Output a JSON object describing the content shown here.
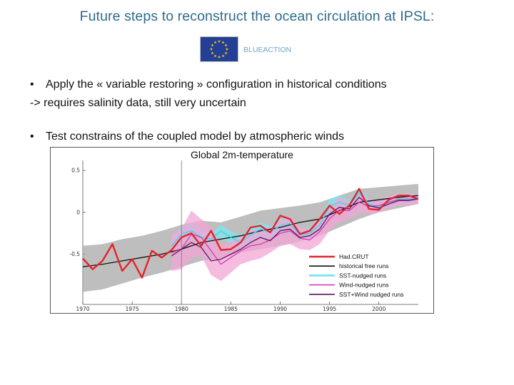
{
  "title": "Future steps to reconstruct the ocean circulation at IPSL:",
  "logo": {
    "text": "BLUEACTION",
    "flag_icon": "eu-flag-icon",
    "flag_color": "#233f96",
    "star_color": "#ffcc00"
  },
  "bullets": [
    {
      "text": "Apply the « variable restoring » configuration in historical conditions",
      "continuation": "-> requires salinity data, still very uncertain"
    },
    {
      "text": "Test constrains of the coupled model by atmospheric winds"
    }
  ],
  "chart_data": {
    "type": "line",
    "title": "Global 2m-temperature",
    "x_ticks": [
      "1970",
      "1975",
      "1980",
      "1985",
      "1990",
      "1995",
      "2000"
    ],
    "y_ticks": [
      "0.5",
      "0",
      "-0.5"
    ],
    "xlim": [
      1970,
      2004
    ],
    "ylim": [
      -1.1,
      0.62
    ],
    "vline_x": 1980,
    "grid": false,
    "legend_position": "bottom-right",
    "bands": [
      {
        "name": "historical free runs",
        "color": "#a8a8a8",
        "x": [
          1970,
          1972,
          1974,
          1976,
          1978,
          1980,
          1982,
          1984,
          1986,
          1988,
          1990,
          1992,
          1994,
          1996,
          1998,
          2000,
          2002,
          2004
        ],
        "lower": [
          -0.95,
          -0.92,
          -0.85,
          -0.78,
          -0.72,
          -0.65,
          -0.58,
          -0.55,
          -0.48,
          -0.44,
          -0.4,
          -0.35,
          -0.28,
          -0.18,
          -0.08,
          0.0,
          0.05,
          0.1
        ],
        "upper": [
          -0.4,
          -0.38,
          -0.32,
          -0.28,
          -0.22,
          -0.15,
          -0.1,
          -0.12,
          -0.05,
          0.02,
          0.05,
          0.08,
          0.12,
          0.2,
          0.28,
          0.3,
          0.32,
          0.34
        ]
      },
      {
        "name": "SST-nudged runs",
        "color": "#7fe6ee",
        "x": [
          1979,
          1980,
          1981,
          1982,
          1983,
          1984,
          1985,
          1986,
          1987,
          1988,
          1989,
          1990,
          1991,
          1992,
          1993,
          1994,
          1995,
          1996,
          1997,
          1998,
          1999,
          2000,
          2001,
          2002,
          2003,
          2004
        ],
        "lower": [
          -0.48,
          -0.35,
          -0.32,
          -0.38,
          -0.4,
          -0.3,
          -0.38,
          -0.45,
          -0.36,
          -0.28,
          -0.32,
          -0.24,
          -0.22,
          -0.34,
          -0.32,
          -0.22,
          -0.02,
          0.04,
          0.02,
          0.16,
          0.05,
          0.0,
          0.06,
          0.1,
          0.1,
          0.12
        ],
        "upper": [
          -0.3,
          -0.18,
          -0.12,
          -0.22,
          -0.25,
          -0.15,
          -0.22,
          -0.28,
          -0.18,
          -0.12,
          -0.16,
          -0.08,
          -0.05,
          -0.2,
          -0.18,
          -0.08,
          0.16,
          0.2,
          0.14,
          0.3,
          0.16,
          0.12,
          0.18,
          0.22,
          0.22,
          0.22
        ]
      },
      {
        "name": "Wind-nudged runs",
        "color": "#f2a6d6",
        "x": [
          1979,
          1980,
          1981,
          1982,
          1983,
          1984,
          1985,
          1986,
          1987,
          1988,
          1989,
          1990,
          1991,
          1992,
          1993,
          1994,
          1995,
          1996,
          1997,
          1998,
          1999,
          2000,
          2001,
          2002,
          2003,
          2004
        ],
        "lower": [
          -0.7,
          -0.68,
          -0.55,
          -0.52,
          -0.75,
          -0.82,
          -0.72,
          -0.62,
          -0.58,
          -0.55,
          -0.48,
          -0.4,
          -0.38,
          -0.44,
          -0.45,
          -0.38,
          -0.22,
          -0.12,
          -0.08,
          0.0,
          -0.02,
          0.0,
          0.05,
          0.08,
          0.08,
          0.1
        ],
        "upper": [
          -0.25,
          -0.2,
          0.02,
          -0.08,
          -0.18,
          -0.4,
          -0.35,
          -0.3,
          -0.22,
          -0.2,
          -0.18,
          -0.1,
          -0.05,
          -0.18,
          -0.2,
          -0.08,
          0.05,
          0.18,
          0.12,
          0.24,
          0.16,
          0.15,
          0.2,
          0.22,
          0.22,
          0.22
        ]
      }
    ],
    "series": [
      {
        "name": "Had.CRUT",
        "color": "#e4242a",
        "x": [
          1970,
          1971,
          1972,
          1973,
          1974,
          1975,
          1976,
          1977,
          1978,
          1979,
          1980,
          1981,
          1982,
          1983,
          1984,
          1985,
          1986,
          1987,
          1988,
          1989,
          1990,
          1991,
          1992,
          1993,
          1994,
          1995,
          1996,
          1997,
          1998,
          1999,
          2000,
          2001,
          2002,
          2003,
          2004
        ],
        "y": [
          -0.55,
          -0.68,
          -0.58,
          -0.38,
          -0.7,
          -0.56,
          -0.78,
          -0.46,
          -0.54,
          -0.45,
          -0.3,
          -0.25,
          -0.4,
          -0.22,
          -0.45,
          -0.44,
          -0.36,
          -0.18,
          -0.16,
          -0.24,
          -0.04,
          -0.08,
          -0.26,
          -0.22,
          -0.08,
          0.08,
          -0.02,
          0.08,
          0.28,
          0.04,
          0.03,
          0.15,
          0.2,
          0.2,
          0.16
        ]
      },
      {
        "name": "historical free runs",
        "color": "#111111",
        "x": [
          1970,
          1972,
          1974,
          1976,
          1978,
          1980,
          1982,
          1984,
          1986,
          1988,
          1990,
          1992,
          1994,
          1996,
          1998,
          2000,
          2002,
          2004
        ],
        "y": [
          -0.65,
          -0.62,
          -0.58,
          -0.54,
          -0.5,
          -0.44,
          -0.36,
          -0.32,
          -0.28,
          -0.22,
          -0.18,
          -0.12,
          -0.08,
          0.02,
          0.12,
          0.15,
          0.18,
          0.2
        ]
      },
      {
        "name": "SST-nudged runs",
        "color": "#3fd4e8",
        "x": [
          1979,
          1980,
          1981,
          1982,
          1983,
          1984,
          1985,
          1986,
          1987,
          1988,
          1989,
          1990,
          1991,
          1992,
          1993,
          1994,
          1995,
          1996,
          1997,
          1998,
          1999,
          2000,
          2001,
          2002,
          2003,
          2004
        ],
        "y": [
          -0.4,
          -0.26,
          -0.22,
          -0.3,
          -0.32,
          -0.22,
          -0.3,
          -0.36,
          -0.27,
          -0.2,
          -0.24,
          -0.16,
          -0.13,
          -0.27,
          -0.25,
          -0.15,
          0.07,
          0.12,
          0.08,
          0.23,
          0.1,
          0.06,
          0.12,
          0.16,
          0.16,
          0.17
        ]
      },
      {
        "name": "Wind-nudged runs",
        "color": "#d63cb4",
        "x": [
          1979,
          1980,
          1981,
          1982,
          1983,
          1984,
          1985,
          1986,
          1987,
          1988,
          1989,
          1990,
          1991,
          1992,
          1993,
          1994,
          1995,
          1996,
          1997,
          1998,
          1999,
          2000,
          2001,
          2002,
          2003,
          2004
        ],
        "y": [
          -0.48,
          -0.44,
          -0.26,
          -0.3,
          -0.46,
          -0.62,
          -0.54,
          -0.46,
          -0.4,
          -0.38,
          -0.33,
          -0.25,
          -0.22,
          -0.31,
          -0.33,
          -0.23,
          -0.08,
          0.03,
          0.02,
          0.12,
          0.07,
          0.08,
          0.12,
          0.15,
          0.15,
          0.16
        ]
      },
      {
        "name": "SST+Wind nudged runs",
        "color": "#5a1a5e",
        "x": [
          1979,
          1980,
          1981,
          1982,
          1983,
          1984,
          1985,
          1986,
          1987,
          1988,
          1989,
          1990,
          1991,
          1992,
          1993,
          1994,
          1995,
          1996,
          1997,
          1998,
          1999,
          2000,
          2001,
          2002,
          2003,
          2004
        ],
        "y": [
          -0.52,
          -0.44,
          -0.36,
          -0.42,
          -0.58,
          -0.56,
          -0.5,
          -0.44,
          -0.36,
          -0.3,
          -0.34,
          -0.22,
          -0.2,
          -0.3,
          -0.28,
          -0.2,
          -0.02,
          0.06,
          0.04,
          0.18,
          0.08,
          0.05,
          0.1,
          0.14,
          0.14,
          0.16
        ]
      }
    ],
    "legend": [
      {
        "label": "Had.CRUT",
        "color": "#e4242a"
      },
      {
        "label": "historical free runs",
        "color": "#111111"
      },
      {
        "label": "SST-nudged runs",
        "color": "#7fe6ee"
      },
      {
        "label": "Wind-nudged runs",
        "color": "#d63cb4"
      },
      {
        "label": "SST+Wind nudged runs",
        "color": "#5a1a5e"
      }
    ]
  }
}
